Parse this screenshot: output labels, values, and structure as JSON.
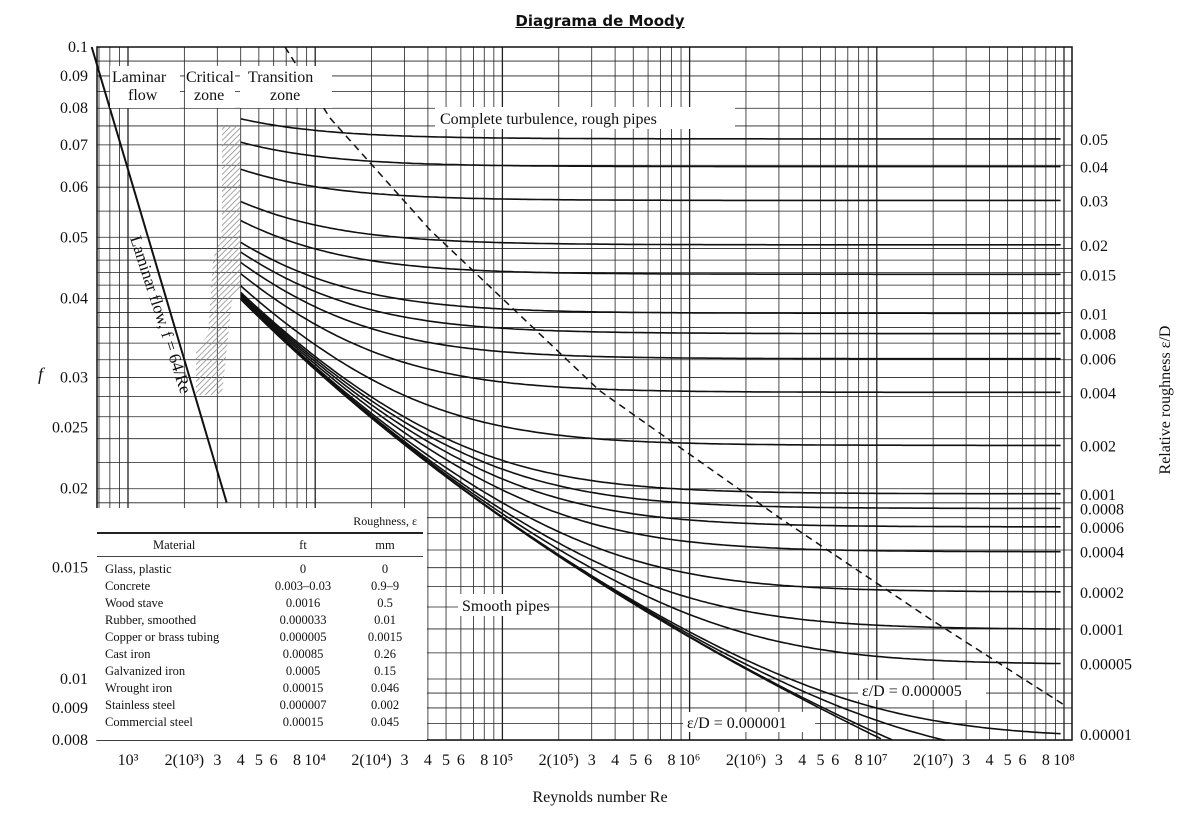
{
  "chart_data": {
    "type": "line",
    "title": "Diagrama de Moody",
    "xlabel": "Reynolds number Re",
    "ylabel": "f",
    "y2label": "Relative roughness ε/D",
    "xscale": "log",
    "yscale": "log",
    "xlim": [
      680,
      100000000
    ],
    "ylim": [
      0.008,
      0.1
    ],
    "grid": true,
    "x_ticks": [
      {
        "label": "10³",
        "value": 1000
      },
      {
        "label": "2(10³)",
        "value": 2000
      },
      {
        "label": "3",
        "value": 3000
      },
      {
        "label": "4",
        "value": 4000
      },
      {
        "label": "5",
        "value": 5000
      },
      {
        "label": "6",
        "value": 6000
      },
      {
        "label": "8",
        "value": 8000
      },
      {
        "label": "10⁴",
        "value": 10000
      },
      {
        "label": "2(10⁴)",
        "value": 20000
      },
      {
        "label": "3",
        "value": 30000
      },
      {
        "label": "4",
        "value": 40000
      },
      {
        "label": "5",
        "value": 50000
      },
      {
        "label": "6",
        "value": 60000
      },
      {
        "label": "8",
        "value": 80000
      },
      {
        "label": "10⁵",
        "value": 100000
      },
      {
        "label": "2(10⁵)",
        "value": 200000
      },
      {
        "label": "3",
        "value": 300000
      },
      {
        "label": "4",
        "value": 400000
      },
      {
        "label": "5",
        "value": 500000
      },
      {
        "label": "6",
        "value": 600000
      },
      {
        "label": "8",
        "value": 800000
      },
      {
        "label": "10⁶",
        "value": 1000000
      },
      {
        "label": "2(10⁶)",
        "value": 2000000
      },
      {
        "label": "3",
        "value": 3000000
      },
      {
        "label": "4",
        "value": 4000000
      },
      {
        "label": "5",
        "value": 5000000
      },
      {
        "label": "6",
        "value": 6000000
      },
      {
        "label": "8",
        "value": 8000000
      },
      {
        "label": "10⁷",
        "value": 10000000
      },
      {
        "label": "2(10⁷)",
        "value": 20000000
      },
      {
        "label": "3",
        "value": 30000000
      },
      {
        "label": "4",
        "value": 40000000
      },
      {
        "label": "5",
        "value": 50000000
      },
      {
        "label": "6",
        "value": 60000000
      },
      {
        "label": "8",
        "value": 80000000
      },
      {
        "label": "10⁸",
        "value": 100000000
      }
    ],
    "y_ticks": [
      "0.1",
      "0.09",
      "0.08",
      "0.07",
      "0.06",
      "0.05",
      "0.04",
      "0.03",
      "0.025",
      "0.02",
      "0.015",
      "0.01",
      "0.009",
      "0.008"
    ],
    "roughness_curves": [
      "0.05",
      "0.04",
      "0.03",
      "0.02",
      "0.015",
      "0.01",
      "0.008",
      "0.006",
      "0.004",
      "0.002",
      "0.001",
      "0.0008",
      "0.0006",
      "0.0004",
      "0.0002",
      "0.0001",
      "0.00005",
      "0.00001",
      "0.000005",
      "0.000001"
    ],
    "right_labels": [
      "0.05",
      "0.04",
      "0.03",
      "0.02",
      "0.015",
      "0.01",
      "0.008",
      "0.006",
      "0.004",
      "0.002",
      "0.001",
      "0.0008",
      "0.0006",
      "0.0004",
      "0.0002",
      "0.0001",
      "0.00005",
      "0.00001"
    ],
    "turbulent_re_range": [
      4000,
      100000000
    ],
    "laminar": {
      "formula": "f = 64/Re",
      "re_range": [
        640,
        3400
      ]
    },
    "complete_turbulence_boundary": [
      [
        6900,
        0.1
      ],
      [
        12000,
        0.0772
      ],
      [
        41200,
        0.0513
      ],
      [
        330000,
        0.0286
      ],
      [
        3100000,
        0.0179
      ],
      [
        19600000,
        0.0124
      ],
      [
        100000000,
        0.0091
      ]
    ],
    "annotations": {
      "laminar_zone": [
        "Laminar",
        "flow"
      ],
      "critical_zone": [
        "Critical",
        "zone"
      ],
      "transition_zone": [
        "Transition",
        "zone"
      ],
      "complete_turbulence": "Complete turbulence, rough pipes",
      "laminar_line": "Laminar flow, f = 64/Re",
      "smooth": "Smooth pipes",
      "ed5": "ε/D = 0.000005",
      "ed1": "ε/D = 0.000001"
    }
  },
  "table": {
    "group_header": "Roughness, ε",
    "columns": [
      "Material",
      "ft",
      "mm"
    ],
    "rows": [
      [
        "Glass, plastic",
        "0",
        "0"
      ],
      [
        "Concrete",
        "0.003–0.03",
        "0.9–9"
      ],
      [
        "Wood stave",
        "0.0016",
        "0.5"
      ],
      [
        "Rubber, smoothed",
        "0.000033",
        "0.01"
      ],
      [
        "Copper or brass tubing",
        "0.000005",
        "0.0015"
      ],
      [
        "Cast iron",
        "0.00085",
        "0.26"
      ],
      [
        "Galvanized iron",
        "0.0005",
        "0.15"
      ],
      [
        "Wrought iron",
        "0.00015",
        "0.046"
      ],
      [
        "Stainless steel",
        "0.000007",
        "0.002"
      ],
      [
        "Commercial steel",
        "0.00015",
        "0.045"
      ]
    ]
  }
}
